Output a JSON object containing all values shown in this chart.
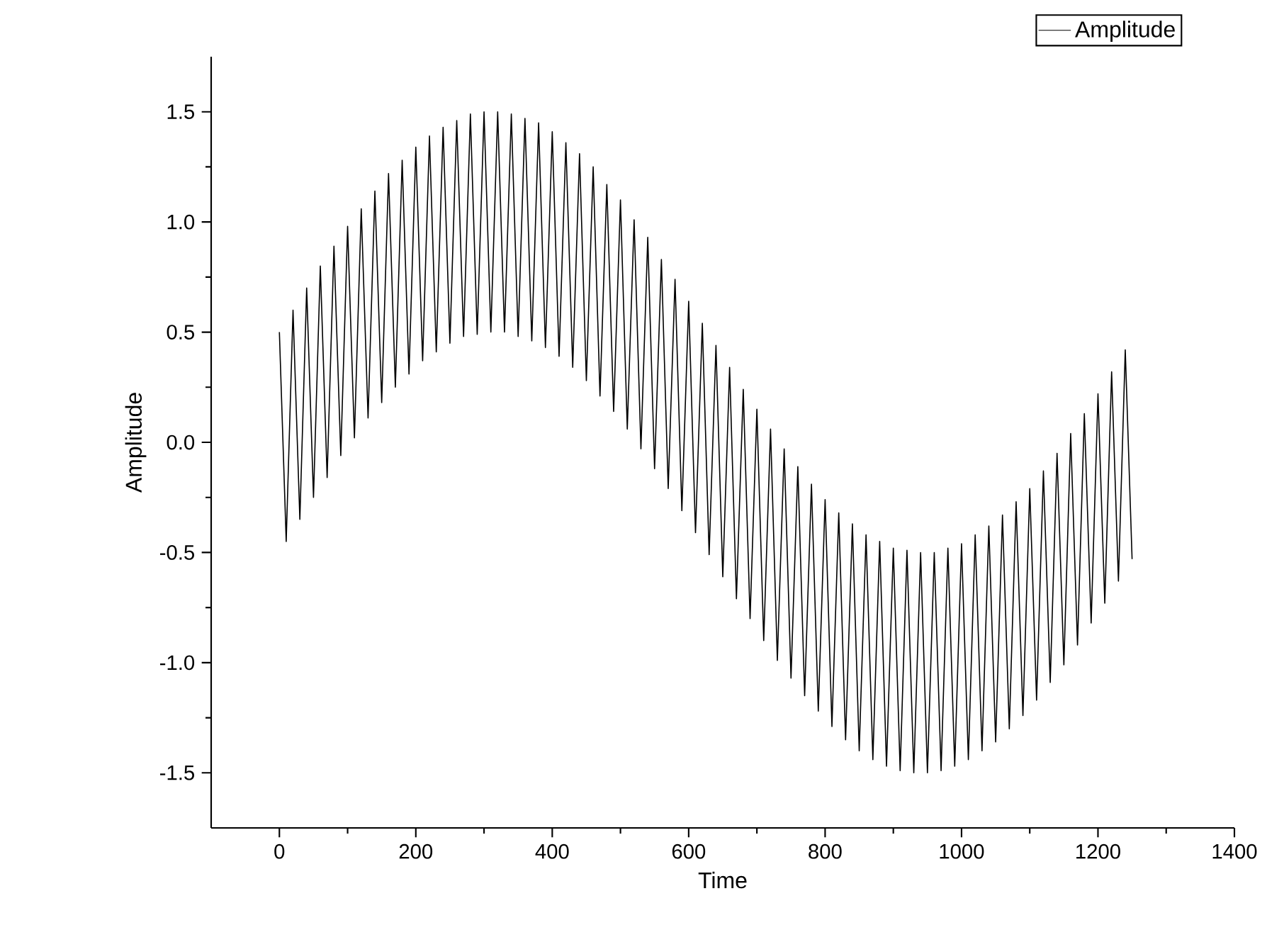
{
  "chart_data": {
    "type": "line",
    "xlabel": "Time",
    "ylabel": "Amplitude",
    "x": [
      0,
      10,
      20,
      30,
      40,
      50,
      60,
      70,
      80,
      90,
      100,
      110,
      120,
      130,
      140,
      150,
      160,
      170,
      180,
      190,
      200,
      210,
      220,
      230,
      240,
      250,
      260,
      270,
      280,
      290,
      300,
      310,
      320,
      330,
      340,
      350,
      360,
      370,
      380,
      390,
      400,
      410,
      420,
      430,
      440,
      450,
      460,
      470,
      480,
      490,
      500,
      510,
      520,
      530,
      540,
      550,
      560,
      570,
      580,
      590,
      600,
      610,
      620,
      630,
      640,
      650,
      660,
      670,
      680,
      690,
      700,
      710,
      720,
      730,
      740,
      750,
      760,
      770,
      780,
      790,
      800,
      810,
      820,
      830,
      840,
      850,
      860,
      870,
      880,
      890,
      900,
      910,
      920,
      930,
      940,
      950,
      960,
      970,
      980,
      990,
      1000,
      1010,
      1020,
      1030,
      1040,
      1050,
      1060,
      1070,
      1080,
      1090,
      1100,
      1110,
      1120,
      1130,
      1140,
      1150,
      1160,
      1170,
      1180,
      1190,
      1200,
      1210,
      1220,
      1230,
      1240,
      1250
    ],
    "series": [
      {
        "name": "Amplitude",
        "color": "#000000",
        "values": [
          0.5,
          -0.45,
          0.6,
          -0.35,
          0.7,
          -0.25,
          0.8,
          -0.16,
          0.89,
          -0.06,
          0.98,
          0.02,
          1.06,
          0.11,
          1.14,
          0.18,
          1.22,
          0.25,
          1.28,
          0.31,
          1.34,
          0.37,
          1.39,
          0.41,
          1.43,
          0.45,
          1.46,
          0.48,
          1.49,
          0.49,
          1.5,
          0.5,
          1.5,
          0.5,
          1.49,
          0.48,
          1.47,
          0.46,
          1.45,
          0.43,
          1.41,
          0.39,
          1.36,
          0.34,
          1.31,
          0.28,
          1.25,
          0.21,
          1.17,
          0.14,
          1.1,
          0.06,
          1.01,
          -0.03,
          0.93,
          -0.12,
          0.83,
          -0.21,
          0.74,
          -0.31,
          0.64,
          -0.41,
          0.54,
          -0.51,
          0.44,
          -0.61,
          0.34,
          -0.71,
          0.24,
          -0.8,
          0.15,
          -0.9,
          0.06,
          -0.99,
          -0.03,
          -1.07,
          -0.11,
          -1.15,
          -0.19,
          -1.22,
          -0.26,
          -1.29,
          -0.32,
          -1.35,
          -0.37,
          -1.4,
          -0.42,
          -1.44,
          -0.45,
          -1.47,
          -0.48,
          -1.49,
          -0.49,
          -1.5,
          -0.5,
          -1.5,
          -0.5,
          -1.49,
          -0.48,
          -1.47,
          -0.46,
          -1.44,
          -0.42,
          -1.4,
          -0.38,
          -1.36,
          -0.33,
          -1.3,
          -0.27,
          -1.24,
          -0.21,
          -1.17,
          -0.13,
          -1.09,
          -0.05,
          -1.01,
          0.04,
          -0.92,
          0.13,
          -0.82,
          0.22,
          -0.73,
          0.32,
          -0.63,
          0.42,
          -0.53
        ]
      }
    ],
    "xlim": [
      -100,
      1400
    ],
    "ylim": [
      -1.75,
      1.75
    ],
    "xticks": [
      0,
      200,
      400,
      600,
      800,
      1000,
      1200,
      1400
    ],
    "yticks": [
      {
        "value": -1.5,
        "label": "-1.5"
      },
      {
        "value": -1.0,
        "label": "-1.0"
      },
      {
        "value": -0.5,
        "label": "-0.5"
      },
      {
        "value": 0,
        "label": "0.0"
      },
      {
        "value": 0.5,
        "label": "0.5"
      },
      {
        "value": 1.0,
        "label": "1.0"
      },
      {
        "value": 1.5,
        "label": "1.5"
      }
    ],
    "grid": false,
    "legend": "top right",
    "marker": "none",
    "line_style": "solid"
  }
}
